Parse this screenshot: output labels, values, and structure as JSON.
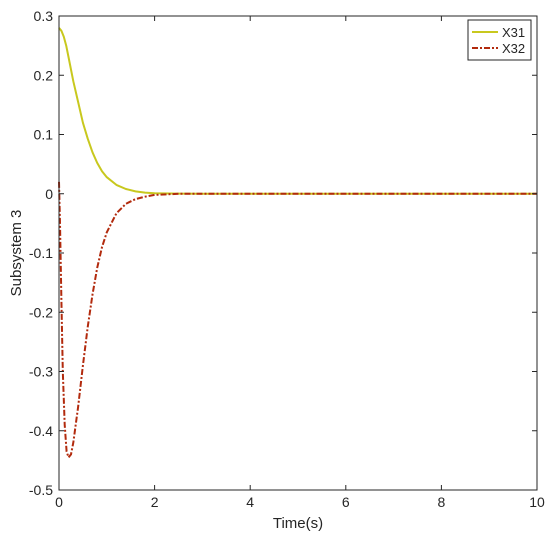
{
  "chart_data": {
    "type": "line",
    "title": "",
    "xlabel": "Time(s)",
    "ylabel": "Subsystem 3",
    "xlim": [
      0,
      10
    ],
    "ylim": [
      -0.5,
      0.3
    ],
    "xticks": [
      0,
      2,
      4,
      6,
      8,
      10
    ],
    "yticks": [
      0.3,
      0.2,
      0.1,
      0,
      -0.1,
      -0.2,
      -0.3,
      -0.4,
      -0.5
    ],
    "grid": false,
    "legend_position": "top-right",
    "series": [
      {
        "name": "X31",
        "color": "#c8c81e",
        "style": "solid",
        "x": [
          0,
          0.05,
          0.1,
          0.15,
          0.2,
          0.3,
          0.4,
          0.5,
          0.6,
          0.7,
          0.8,
          0.9,
          1.0,
          1.2,
          1.4,
          1.6,
          1.8,
          2.0,
          2.5,
          3.0,
          4.0,
          6.0,
          8.0,
          10.0
        ],
        "y": [
          0.28,
          0.275,
          0.265,
          0.25,
          0.23,
          0.19,
          0.155,
          0.12,
          0.093,
          0.07,
          0.052,
          0.038,
          0.028,
          0.015,
          0.008,
          0.004,
          0.002,
          0.001,
          0.0002,
          0.0,
          0.0,
          0.0,
          0.0,
          0.0
        ]
      },
      {
        "name": "X32",
        "color": "#b22a0d",
        "style": "dashdot",
        "x": [
          0,
          0.02,
          0.05,
          0.08,
          0.12,
          0.16,
          0.2,
          0.25,
          0.3,
          0.35,
          0.4,
          0.5,
          0.6,
          0.7,
          0.8,
          0.9,
          1.0,
          1.2,
          1.4,
          1.6,
          1.8,
          2.0,
          2.5,
          3.0,
          4.0,
          6.0,
          8.0,
          10.0
        ],
        "y": [
          0.02,
          -0.05,
          -0.18,
          -0.3,
          -0.39,
          -0.435,
          -0.445,
          -0.44,
          -0.42,
          -0.39,
          -0.36,
          -0.29,
          -0.225,
          -0.17,
          -0.125,
          -0.09,
          -0.065,
          -0.033,
          -0.017,
          -0.009,
          -0.005,
          -0.002,
          0.0,
          0.0,
          0.0,
          0.0,
          0.0,
          0.0
        ]
      }
    ]
  }
}
